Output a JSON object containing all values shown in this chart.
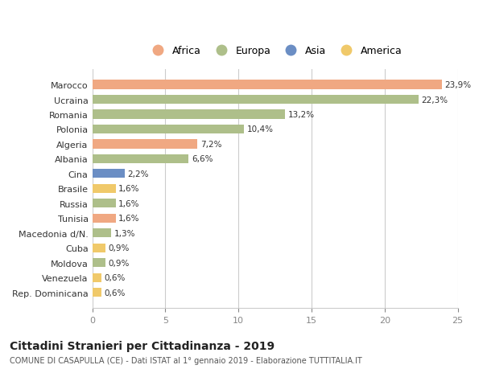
{
  "countries": [
    "Marocco",
    "Ucraina",
    "Romania",
    "Polonia",
    "Algeria",
    "Albania",
    "Cina",
    "Brasile",
    "Russia",
    "Tunisia",
    "Macedonia d/N.",
    "Cuba",
    "Moldova",
    "Venezuela",
    "Rep. Dominicana"
  ],
  "values": [
    23.9,
    22.3,
    13.2,
    10.4,
    7.2,
    6.6,
    2.2,
    1.6,
    1.6,
    1.6,
    1.3,
    0.9,
    0.9,
    0.6,
    0.6
  ],
  "labels": [
    "23,9%",
    "22,3%",
    "13,2%",
    "10,4%",
    "7,2%",
    "6,6%",
    "2,2%",
    "1,6%",
    "1,6%",
    "1,6%",
    "1,3%",
    "0,9%",
    "0,9%",
    "0,6%",
    "0,6%"
  ],
  "bar_colors": [
    "#F0A882",
    "#AEBF8A",
    "#AEBF8A",
    "#AEBF8A",
    "#F0A882",
    "#AEBF8A",
    "#6B8EC4",
    "#F0C96A",
    "#AEBF8A",
    "#F0A882",
    "#AEBF8A",
    "#F0C96A",
    "#AEBF8A",
    "#F0C96A",
    "#F0C96A"
  ],
  "title": "Cittadini Stranieri per Cittadinanza - 2019",
  "subtitle": "COMUNE DI CASAPULLA (CE) - Dati ISTAT al 1° gennaio 2019 - Elaborazione TUTTITALIA.IT",
  "xlim": [
    0,
    25
  ],
  "xticks": [
    0,
    5,
    10,
    15,
    20,
    25
  ],
  "background_color": "#ffffff",
  "grid_color": "#cccccc",
  "legend_labels": [
    "Africa",
    "Europa",
    "Asia",
    "America"
  ],
  "legend_colors": [
    "#F0A882",
    "#AEBF8A",
    "#6B8EC4",
    "#F0C96A"
  ]
}
